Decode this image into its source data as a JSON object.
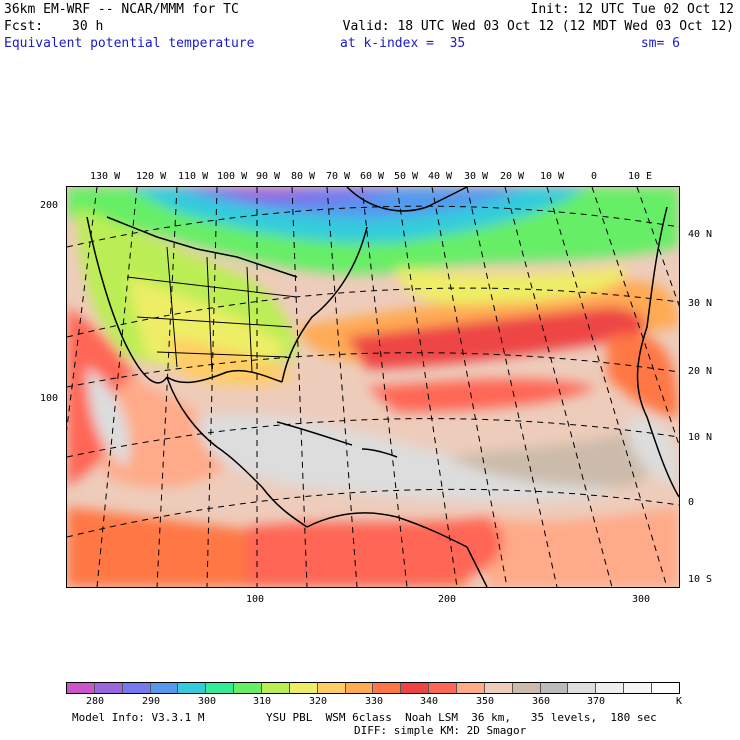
{
  "header": {
    "model_title": "36km EM-WRF -- NCAR/MMM for TC",
    "init": "Init: 12 UTC Tue 02 Oct 12",
    "fcst_label": "Fcst:",
    "fcst_value": "30 h",
    "valid": "Valid: 18 UTC Wed 03 Oct 12 (12 MDT Wed 03 Oct 12)",
    "field": "Equivalent potential temperature",
    "level": "at k-index =  35",
    "smoothing": "sm= 6"
  },
  "map": {
    "top_lon_labels": [
      "130 W",
      "120 W",
      "110 W",
      "100 W",
      "90 W",
      "80 W",
      "70 W",
      "60 W",
      "50 W",
      "40 W",
      "30 W",
      "20 W",
      "10 W",
      "0",
      "10 E"
    ],
    "right_lat_labels": [
      "40 N",
      "30 N",
      "20 N",
      "10 N",
      "0",
      "10 S"
    ],
    "left_grid_labels": [
      "200",
      "100"
    ],
    "bottom_grid_labels": [
      "100",
      "200",
      "300"
    ]
  },
  "colorbar": {
    "labels": [
      "280",
      "290",
      "300",
      "310",
      "320",
      "330",
      "340",
      "350",
      "360",
      "370"
    ],
    "unit": "K",
    "colors": [
      "#cc55cc",
      "#9966dd",
      "#7777ee",
      "#5599ee",
      "#33ccdd",
      "#33ee99",
      "#66ee66",
      "#bbee55",
      "#eeee66",
      "#ffcc66",
      "#ffaa55",
      "#ff7744",
      "#ee4444",
      "#ff6655",
      "#ffaa88",
      "#eeccbb",
      "#ccbbaa",
      "#bbbbbb",
      "#dddddd",
      "#eeeeee",
      "#f6f6f6",
      "#ffffff"
    ]
  },
  "footer": {
    "model_info": "Model Info: V3.3.1 M",
    "physics_line1": "YSU PBL  WSM 6class  Noah LSM  36 km,   35 levels,  180 sec",
    "physics_line2": "DIFF: simple KM: 2D Smagor"
  }
}
